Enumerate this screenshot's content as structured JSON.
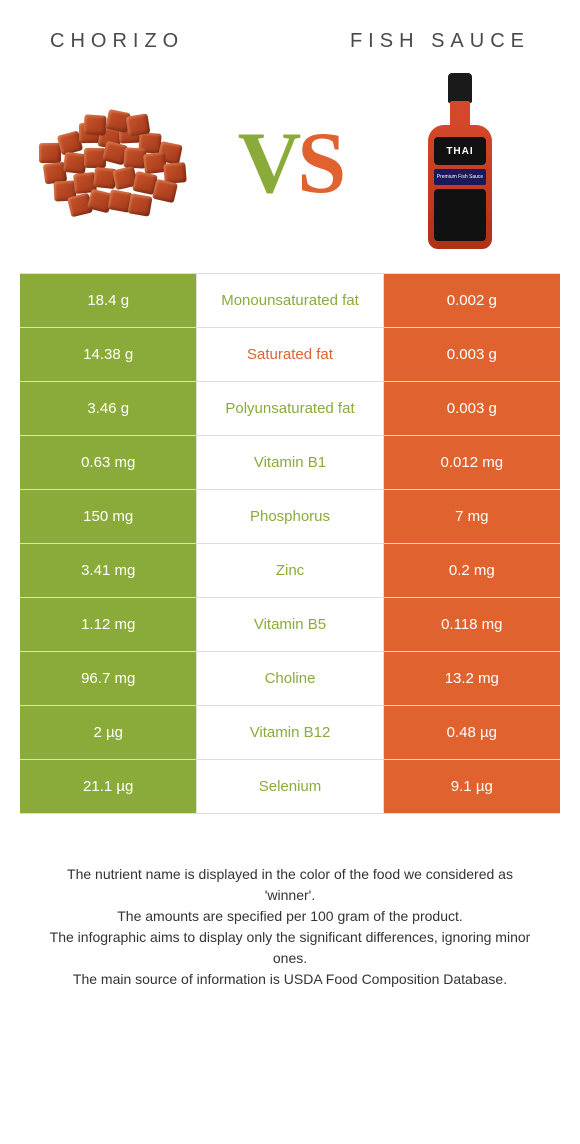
{
  "header": {
    "left": "CHORIZO",
    "right": "FISH SAUCE"
  },
  "vs": {
    "v": "V",
    "s": "S"
  },
  "bottle_label": {
    "brand": "THAI",
    "sub": "Premium Fish Sauce"
  },
  "colors": {
    "left_bg": "#8aab3a",
    "right_bg": "#e0622f",
    "left_text": "#8aab3a",
    "right_text": "#e0622f"
  },
  "rows": [
    {
      "left": "18.4 g",
      "label": "Monounsaturated fat",
      "right": "0.002 g",
      "winner": "left"
    },
    {
      "left": "14.38 g",
      "label": "Saturated fat",
      "right": "0.003 g",
      "winner": "right"
    },
    {
      "left": "3.46 g",
      "label": "Polyunsaturated fat",
      "right": "0.003 g",
      "winner": "left"
    },
    {
      "left": "0.63 mg",
      "label": "Vitamin B1",
      "right": "0.012 mg",
      "winner": "left"
    },
    {
      "left": "150 mg",
      "label": "Phosphorus",
      "right": "7 mg",
      "winner": "left"
    },
    {
      "left": "3.41 mg",
      "label": "Zinc",
      "right": "0.2 mg",
      "winner": "left"
    },
    {
      "left": "1.12 mg",
      "label": "Vitamin B5",
      "right": "0.118 mg",
      "winner": "left"
    },
    {
      "left": "96.7 mg",
      "label": "Choline",
      "right": "13.2 mg",
      "winner": "left"
    },
    {
      "left": "2 µg",
      "label": "Vitamin B12",
      "right": "0.48 µg",
      "winner": "left"
    },
    {
      "left": "21.1 µg",
      "label": "Selenium",
      "right": "9.1 µg",
      "winner": "left"
    }
  ],
  "footnote": {
    "l1": "The nutrient name is displayed in the color of the food we considered as 'winner'.",
    "l2": "The amounts are specified per 100 gram of the product.",
    "l3": "The infographic aims to display only the significant differences, ignoring minor ones.",
    "l4": "The main source of information is USDA Food Composition Database."
  }
}
